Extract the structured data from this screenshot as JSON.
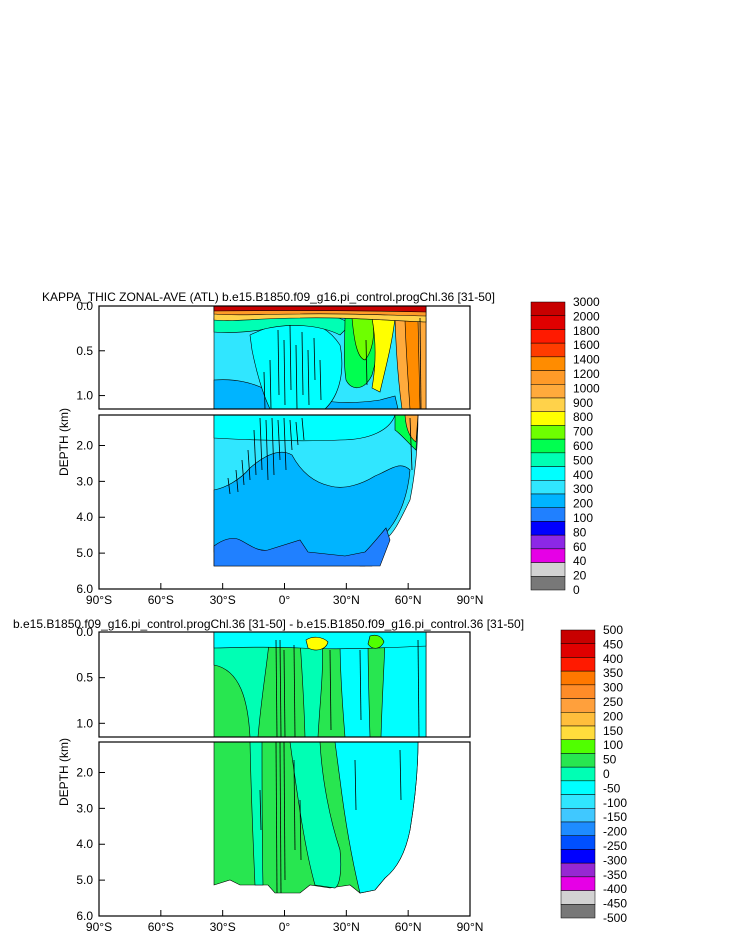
{
  "chart_data": [
    {
      "type": "heatmap",
      "title": "KAPPA_THIC ZONAL-AVE (ATL) b.e15.B1850.f09_g16.pi_control.progChl.36 [31-50]",
      "ylabel": "DEPTH (km)",
      "x_ticks": [
        "90°S",
        "60°S",
        "30°S",
        "0°",
        "30°N",
        "60°N",
        "90°N"
      ],
      "x_tick_values": [
        -90,
        -60,
        -30,
        0,
        30,
        60,
        90
      ],
      "xlim": [
        -90,
        90
      ],
      "upper_ticks": [
        "0.0",
        "0.5",
        "1.0"
      ],
      "upper_tick_values": [
        0,
        0.5,
        1.0
      ],
      "upper_ylim": [
        0,
        1.15
      ],
      "lower_ticks": [
        "2.0",
        "3.0",
        "4.0",
        "5.0",
        "6.0"
      ],
      "lower_tick_values": [
        2,
        3,
        4,
        5,
        6
      ],
      "lower_ylim": [
        1.15,
        6.0
      ],
      "colorbar_labels": [
        "3000",
        "2000",
        "1800",
        "1600",
        "1400",
        "1200",
        "1000",
        "900",
        "800",
        "700",
        "600",
        "500",
        "400",
        "300",
        "200",
        "100",
        "80",
        "60",
        "40",
        "20",
        "0"
      ],
      "colorbar_colors": [
        "#c80000",
        "#e00000",
        "#ff1a00",
        "#ff3c00",
        "#ff8c00",
        "#ff9a28",
        "#ffaa3c",
        "#ffd24a",
        "#ffff00",
        "#6eff00",
        "#00ff50",
        "#00ffb4",
        "#00ffff",
        "#30e6ff",
        "#00b4ff",
        "#2080ff",
        "#0000ff",
        "#8c28e6",
        "#e600e6",
        "#d2d2d2",
        "#787878"
      ]
    },
    {
      "type": "heatmap",
      "title": "b.e15.B1850.f09_g16.pi_control.progChl.36 [31-50] - b.e15.B1850.f09_g16.pi_control.36 [31-50]",
      "ylabel": "DEPTH (km)",
      "x_ticks": [
        "90°S",
        "60°S",
        "30°S",
        "0°",
        "30°N",
        "60°N",
        "90°N"
      ],
      "x_tick_values": [
        -90,
        -60,
        -30,
        0,
        30,
        60,
        90
      ],
      "xlim": [
        -90,
        90
      ],
      "upper_ticks": [
        "0.0",
        "0.5",
        "1.0"
      ],
      "upper_tick_values": [
        0,
        0.5,
        1.0
      ],
      "upper_ylim": [
        0,
        1.15
      ],
      "lower_ticks": [
        "2.0",
        "3.0",
        "4.0",
        "5.0",
        "6.0"
      ],
      "lower_tick_values": [
        2,
        3,
        4,
        5,
        6
      ],
      "lower_ylim": [
        1.15,
        6.0
      ],
      "colorbar_labels": [
        "500",
        "450",
        "400",
        "350",
        "300",
        "250",
        "200",
        "150",
        "100",
        "50",
        "0",
        "-50",
        "-100",
        "-150",
        "-200",
        "-250",
        "-300",
        "-350",
        "-400",
        "-450",
        "-500"
      ],
      "colorbar_colors": [
        "#c80000",
        "#e00000",
        "#ff1a00",
        "#ff7800",
        "#ff8c28",
        "#ffa03c",
        "#ffbe3c",
        "#ffdc3c",
        "#50ff00",
        "#28e650",
        "#00ffb4",
        "#00ffff",
        "#30e6ff",
        "#40c8ff",
        "#1e8cff",
        "#0050ff",
        "#0000ff",
        "#9628d2",
        "#e600e6",
        "#d2d2d2",
        "#787878"
      ]
    }
  ]
}
